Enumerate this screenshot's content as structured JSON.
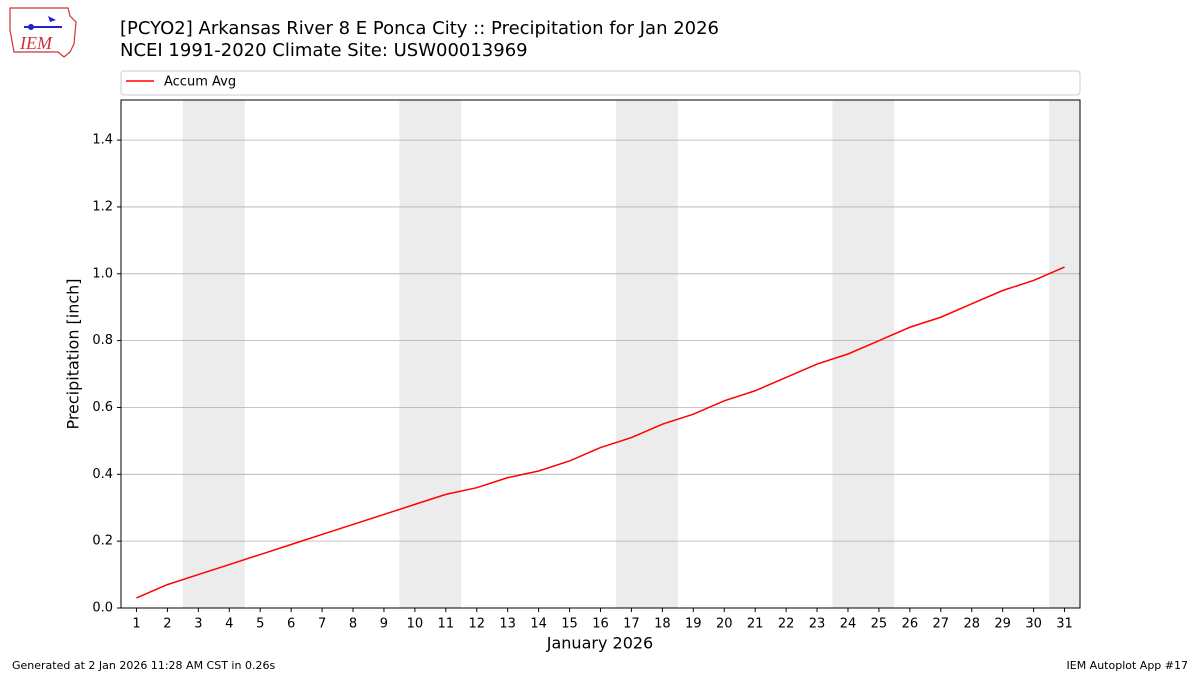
{
  "chart_data": {
    "type": "line",
    "title": "[PCYO2] Arkansas River 8 E Ponca City :: Precipitation for Jan 2026",
    "subtitle": "NCEI 1991-2020 Climate Site: USW00013969",
    "x_label": "January 2026",
    "y_label": "Precipitation [inch]",
    "x": [
      1,
      2,
      3,
      4,
      5,
      6,
      7,
      8,
      9,
      10,
      11,
      12,
      13,
      14,
      15,
      16,
      17,
      18,
      19,
      20,
      21,
      22,
      23,
      24,
      25,
      26,
      27,
      28,
      29,
      30,
      31
    ],
    "series": [
      {
        "name": "Accum Avg",
        "color": "#ff0000",
        "values": [
          0.03,
          0.07,
          0.1,
          0.13,
          0.16,
          0.19,
          0.22,
          0.25,
          0.28,
          0.31,
          0.34,
          0.36,
          0.39,
          0.41,
          0.44,
          0.48,
          0.51,
          0.55,
          0.58,
          0.62,
          0.65,
          0.69,
          0.73,
          0.76,
          0.8,
          0.84,
          0.87,
          0.91,
          0.95,
          0.98,
          1.02
        ]
      }
    ],
    "weekend_bands": [
      [
        2.5,
        4.5
      ],
      [
        9.5,
        11.5
      ],
      [
        16.5,
        18.5
      ],
      [
        23.5,
        25.5
      ],
      [
        30.5,
        31.5
      ]
    ],
    "band_color": "#ececec",
    "xlim": [
      0.5,
      31.5
    ],
    "xticks": [
      1,
      2,
      3,
      4,
      5,
      6,
      7,
      8,
      9,
      10,
      11,
      12,
      13,
      14,
      15,
      16,
      17,
      18,
      19,
      20,
      21,
      22,
      23,
      24,
      25,
      26,
      27,
      28,
      29,
      30,
      31
    ],
    "ylim": [
      0,
      1.52
    ],
    "yticks": [
      {
        "value": 0,
        "label": "0.0"
      },
      {
        "value": 0.2,
        "label": "0.2"
      },
      {
        "value": 0.4,
        "label": "0.4"
      },
      {
        "value": 0.6,
        "label": "0.6"
      },
      {
        "value": 0.8,
        "label": "0.8"
      },
      {
        "value": 1,
        "label": "1.0"
      },
      {
        "value": 1.2,
        "label": "1.2"
      },
      {
        "value": 1.4,
        "label": "1.4"
      }
    ],
    "grid": true,
    "legend": "top",
    "footer_left": "Generated at 2 Jan 2026 11:28 AM CST in 0.26s",
    "footer_right": "IEM Autoplot App #17",
    "logo_text": "IEM"
  }
}
